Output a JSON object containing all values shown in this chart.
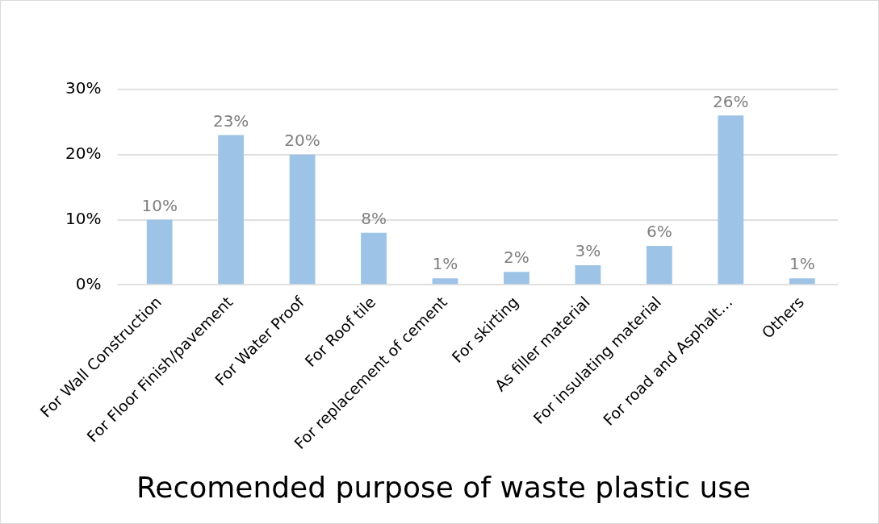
{
  "chart_data": {
    "type": "bar",
    "title": "Recomended purpose of waste plastic use",
    "categories": [
      "For Wall Construction",
      "For Floor Finish/pavement",
      "For Water Proof",
      "For Roof tile",
      "For replacement of cement",
      "For skirting",
      "As filler material",
      "For insulating material",
      "For road and Asphalt…",
      "Others"
    ],
    "values": [
      10,
      23,
      20,
      8,
      1,
      2,
      3,
      6,
      26,
      1
    ],
    "value_labels": [
      "10%",
      "23%",
      "20%",
      "8%",
      "1%",
      "2%",
      "3%",
      "6%",
      "26%",
      "1%"
    ],
    "color": "#9dc3e6",
    "ylim": [
      0,
      30
    ],
    "yticks": [
      {
        "value": 0,
        "label": "0%"
      },
      {
        "value": 10,
        "label": "10%"
      },
      {
        "value": 20,
        "label": "20%"
      },
      {
        "value": 30,
        "label": "30%"
      }
    ],
    "grid": "y",
    "legend": false
  }
}
